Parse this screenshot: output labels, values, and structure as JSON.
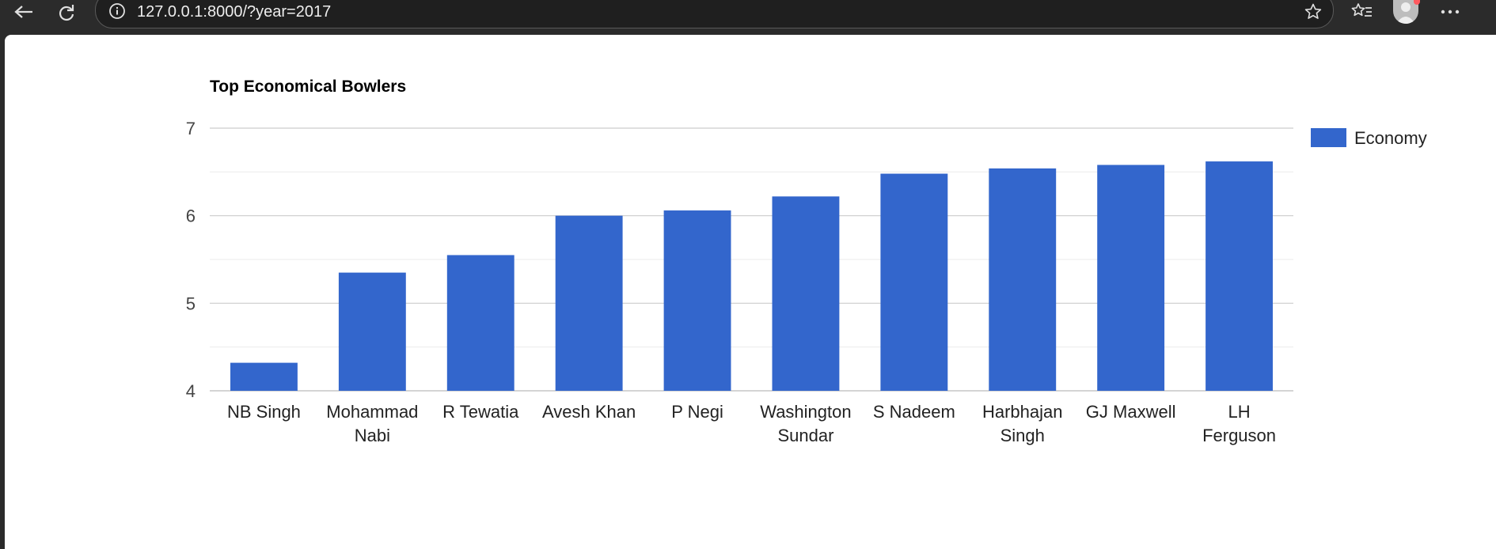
{
  "browser": {
    "url": "127.0.0.1:8000/?year=2017",
    "icons": [
      "back-icon",
      "reload-icon",
      "info-icon",
      "star-icon",
      "favorites-icon",
      "profile-icon",
      "more-icon"
    ]
  },
  "colors": {
    "bar": "#3366cc",
    "grid_major": "#cccccc",
    "grid_minor": "#ebebeb",
    "text": "#222222",
    "tick_text": "#444444"
  },
  "chart_data": {
    "type": "bar",
    "title": "Top Economical Bowlers",
    "xlabel": "",
    "ylabel": "",
    "categories": [
      "NB Singh",
      "Mohammad Nabi",
      "R Tewatia",
      "Avesh Khan",
      "P Negi",
      "Washington Sundar",
      "S Nadeem",
      "Harbhajan Singh",
      "GJ Maxwell",
      "LH Ferguson"
    ],
    "category_lines": [
      [
        "NB Singh"
      ],
      [
        "Mohammad",
        "Nabi"
      ],
      [
        "R Tewatia"
      ],
      [
        "Avesh Khan"
      ],
      [
        "P Negi"
      ],
      [
        "Washington",
        "Sundar"
      ],
      [
        "S Nadeem"
      ],
      [
        "Harbhajan",
        "Singh"
      ],
      [
        "GJ Maxwell"
      ],
      [
        "LH",
        "Ferguson"
      ]
    ],
    "series": [
      {
        "name": "Economy",
        "values": [
          4.32,
          5.35,
          5.55,
          6.0,
          6.06,
          6.22,
          6.48,
          6.54,
          6.58,
          6.62
        ]
      }
    ],
    "ylim": [
      4,
      7
    ],
    "yticks": [
      4,
      5,
      6,
      7
    ],
    "grid": true,
    "legend_position": "right"
  }
}
